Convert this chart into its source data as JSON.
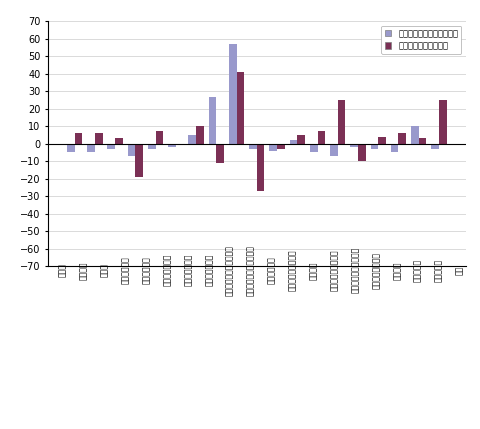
{
  "categories": [
    "近工業",
    "製造工業",
    "鉄鋼業",
    "非鉄金属工業",
    "金属製品工業",
    "はん用機械工業",
    "生産用機械工業",
    "業務用機械工業",
    "電子部品・デバイス工業",
    "電気・情報通信機材工業",
    "輸送機械工業",
    "窯業・土石製品工業",
    "化学工業",
    "石油・石炭製品工業",
    "プラスチック製品工業",
    "訳・紙加工品工業",
    "繊維工業",
    "食料品工業",
    "その他工業",
    "近業"
  ],
  "mom_values": [
    -5,
    -5,
    -3,
    -7,
    -3,
    -2,
    5,
    27,
    57,
    -3,
    -4,
    2,
    -5,
    -7,
    -2,
    -3,
    -5,
    10,
    -3,
    null
  ],
  "yoy_values": [
    6,
    6,
    3,
    -19,
    7,
    -1,
    10,
    -11,
    41,
    -27,
    -3,
    5,
    7,
    25,
    -10,
    4,
    6,
    3,
    25,
    null
  ],
  "bar_color_mom": "#9999cc",
  "bar_color_yoy": "#7b3055",
  "ylim": [
    -70,
    70
  ],
  "yticks": [
    -70,
    -60,
    -50,
    -40,
    -30,
    -20,
    -10,
    0,
    10,
    20,
    30,
    40,
    50,
    60,
    70
  ],
  "legend_mom": "前月比（季節調整済指数）",
  "legend_yoy": "前年同月比（原指数）",
  "background_color": "#ffffff",
  "grid_color": "#cccccc"
}
